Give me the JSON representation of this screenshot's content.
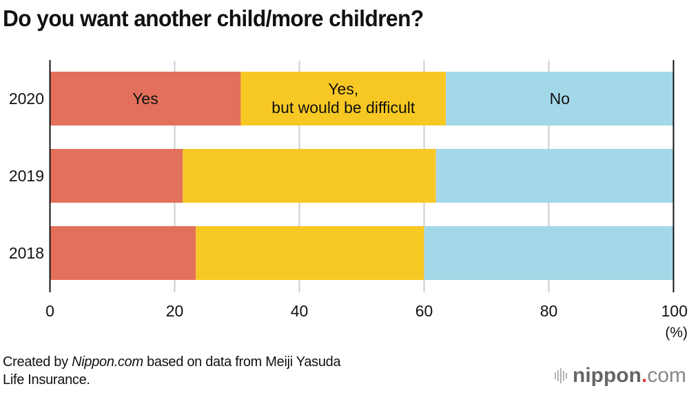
{
  "title": "Do you want another child/more children?",
  "footer": {
    "prefix": "Created by ",
    "brand_italic": "Nippon.com",
    "suffix_line1": " based on data from Meiji Yasuda",
    "line2": "Life Insurance."
  },
  "logo": {
    "name": "nippon",
    "dot": ".",
    "tld": "com",
    "icon": "sound-bars-icon"
  },
  "colors": {
    "yes": "#e3705a",
    "difficult": "#f7c823",
    "no": "#a3d8e8",
    "axis": "#111111",
    "grid": "#cccccc"
  },
  "chart_data": {
    "type": "bar",
    "orientation": "horizontal",
    "stacked": true,
    "title": "Do you want another child/more children?",
    "categories": [
      "2020",
      "2019",
      "2018"
    ],
    "series": [
      {
        "name": "Yes",
        "label": "Yes",
        "values": [
          30.6,
          21.3,
          23.4
        ]
      },
      {
        "name": "Yes, but would be difficult",
        "label_line1": "Yes,",
        "label_line2": "but would be difficult",
        "values": [
          32.9,
          40.6,
          36.6
        ]
      },
      {
        "name": "No",
        "label": "No",
        "values": [
          36.5,
          38.1,
          40.0
        ]
      }
    ],
    "xlabel": "(%)",
    "ylabel": "",
    "xlim": [
      0,
      100
    ],
    "xticks": [
      "0",
      "20",
      "40",
      "60",
      "80",
      "100"
    ],
    "grid": true,
    "legend": "inline labels on 2020 bar"
  }
}
